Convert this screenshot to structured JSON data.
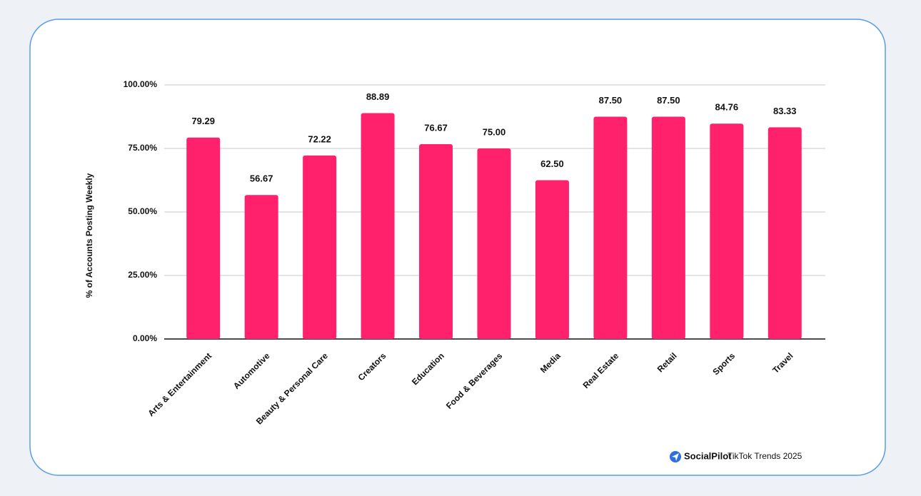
{
  "chart_data": {
    "type": "bar",
    "y_label": "% of Accounts Posting Weekly",
    "categories": [
      "Arts & Entertainment",
      "Automotive",
      "Beauty & Personal Care",
      "Creators",
      "Education",
      "Food & Beverages",
      "Media",
      "Real Estate",
      "Retail",
      "Sports",
      "Travel"
    ],
    "values": [
      79.29,
      56.67,
      72.22,
      88.89,
      76.67,
      75.0,
      62.5,
      87.5,
      87.5,
      84.76,
      83.33
    ],
    "value_labels": [
      "79.29",
      "56.67",
      "72.22",
      "88.89",
      "76.67",
      "75.00",
      "62.50",
      "87.50",
      "87.50",
      "84.76",
      "83.33"
    ],
    "color": "#ff216b",
    "ylim": [
      0,
      100
    ],
    "yticks": [
      {
        "value": 0,
        "label": "0.00%"
      },
      {
        "value": 25,
        "label": "25.00%"
      },
      {
        "value": 50,
        "label": "50.00%"
      },
      {
        "value": 75,
        "label": "75.00%"
      },
      {
        "value": 100,
        "label": "100.00%"
      }
    ],
    "grid": true,
    "brand": "SocialPilot",
    "caption": "TikTok Trends 2025"
  }
}
